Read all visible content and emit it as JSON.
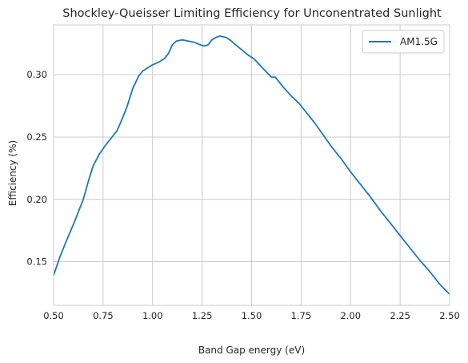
{
  "chart_data": {
    "type": "line",
    "title": "Shockley-Queisser Limiting Efficiency for Unconentrated Sunlight",
    "xlabel": "Band Gap energy (eV)",
    "ylabel": "Efficiency (%)",
    "xlim": [
      0.5,
      2.5
    ],
    "ylim": [
      0.115,
      0.34
    ],
    "xticks": [
      "0.50",
      "0.75",
      "1.00",
      "1.25",
      "1.50",
      "1.75",
      "2.00",
      "2.25",
      "2.50"
    ],
    "yticks": [
      "0.15",
      "0.20",
      "0.25",
      "0.30"
    ],
    "grid": true,
    "legend": {
      "position": "top-right",
      "entries": [
        "AM1.5G"
      ]
    },
    "series": [
      {
        "name": "AM1.5G",
        "color": "#1f77b4",
        "x": [
          0.5,
          0.53,
          0.56,
          0.6,
          0.65,
          0.68,
          0.7,
          0.73,
          0.76,
          0.8,
          0.82,
          0.84,
          0.87,
          0.9,
          0.93,
          0.95,
          0.98,
          1.0,
          1.03,
          1.06,
          1.08,
          1.1,
          1.12,
          1.15,
          1.18,
          1.21,
          1.24,
          1.26,
          1.28,
          1.3,
          1.32,
          1.34,
          1.37,
          1.39,
          1.42,
          1.45,
          1.48,
          1.51,
          1.54,
          1.57,
          1.6,
          1.62,
          1.64,
          1.66,
          1.7,
          1.74,
          1.78,
          1.82,
          1.86,
          1.9,
          1.95,
          2.0,
          2.05,
          2.1,
          2.15,
          2.2,
          2.25,
          2.3,
          2.35,
          2.4,
          2.45,
          2.48,
          2.5
        ],
        "y": [
          0.139,
          0.153,
          0.165,
          0.18,
          0.2,
          0.217,
          0.227,
          0.236,
          0.243,
          0.251,
          0.255,
          0.262,
          0.274,
          0.289,
          0.299,
          0.303,
          0.306,
          0.308,
          0.31,
          0.313,
          0.317,
          0.324,
          0.327,
          0.328,
          0.327,
          0.326,
          0.324,
          0.323,
          0.324,
          0.328,
          0.33,
          0.331,
          0.33,
          0.328,
          0.324,
          0.32,
          0.316,
          0.313,
          0.308,
          0.303,
          0.298,
          0.298,
          0.294,
          0.29,
          0.283,
          0.277,
          0.269,
          0.261,
          0.252,
          0.243,
          0.233,
          0.222,
          0.212,
          0.202,
          0.191,
          0.181,
          0.171,
          0.161,
          0.151,
          0.142,
          0.132,
          0.127,
          0.124
        ]
      }
    ]
  }
}
